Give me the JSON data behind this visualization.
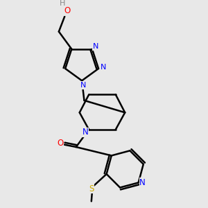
{
  "background_color": "#e8e8e8",
  "bond_color": "#000000",
  "bond_width": 1.8,
  "atom_colors": {
    "C": "#000000",
    "N": "#0000ff",
    "O": "#ff0000",
    "S": "#ccaa00",
    "H": "#888888"
  },
  "figsize": [
    3.0,
    3.0
  ],
  "dpi": 100
}
